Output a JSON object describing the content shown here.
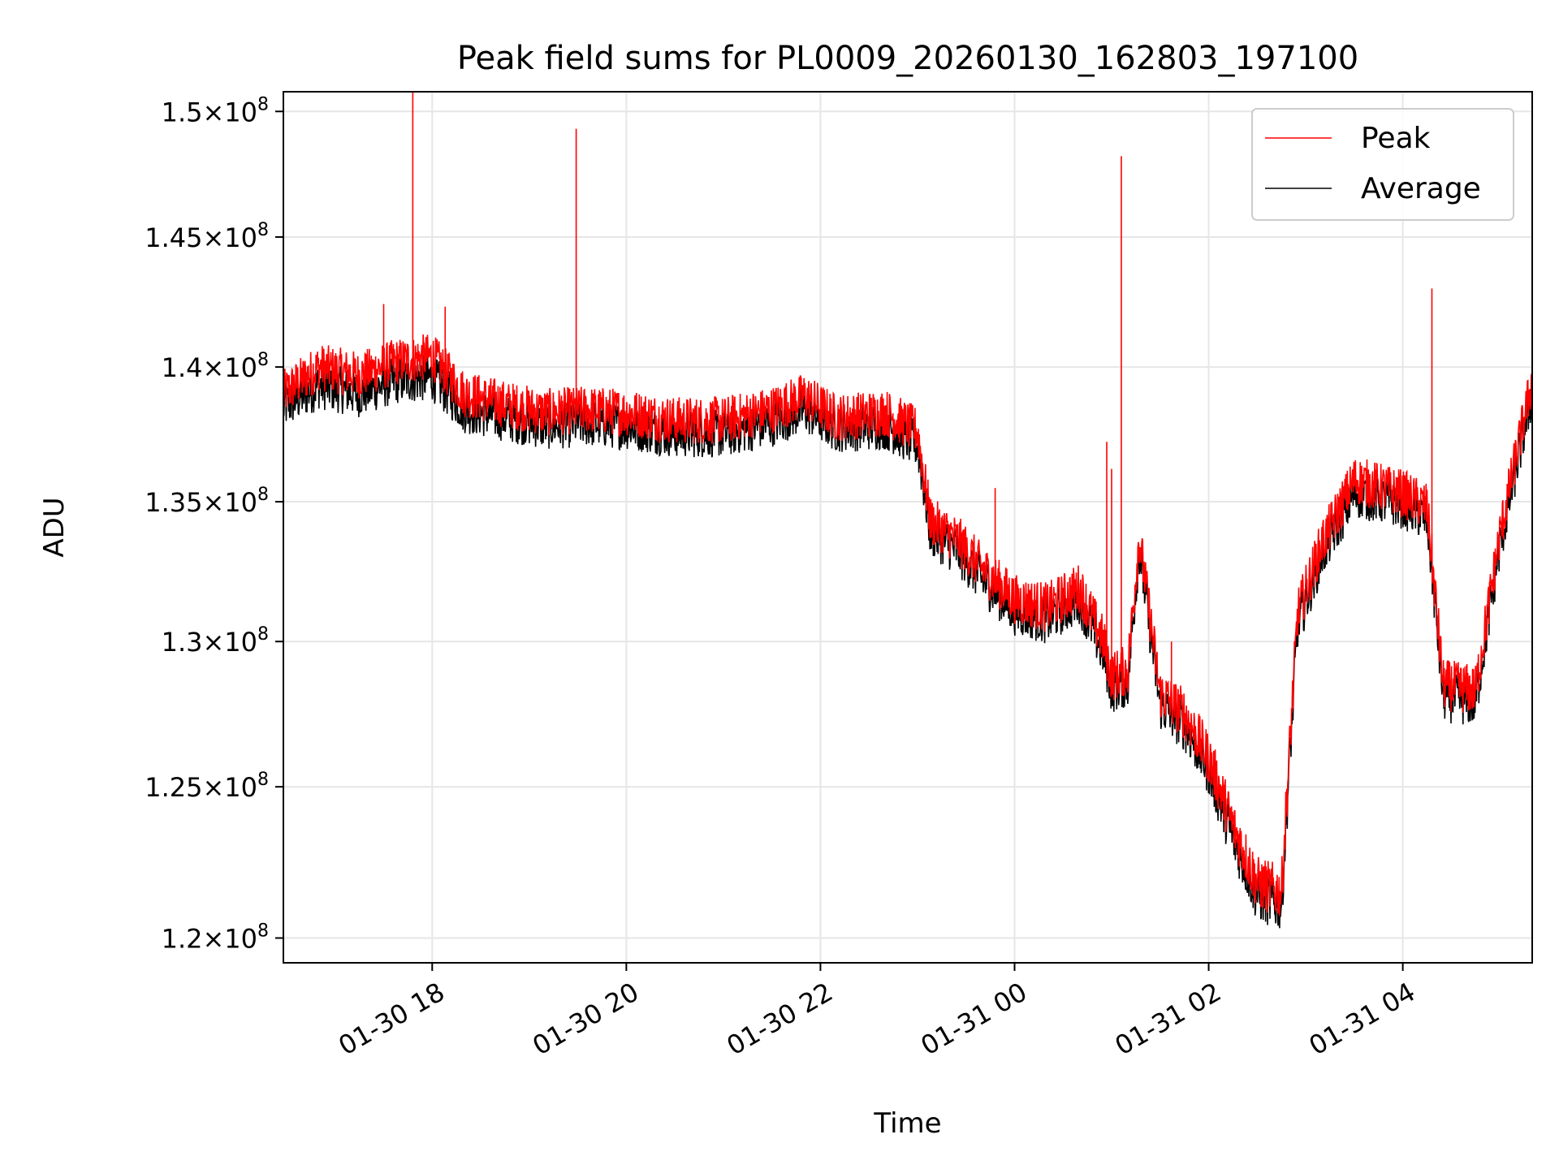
{
  "chart_data": {
    "type": "line",
    "title": "Peak field sums for PL0009_20260130_162803_197100",
    "xlabel": "Time",
    "ylabel": "ADU",
    "ylim": [
      119200000,
      150800000
    ],
    "xlim": [
      "2026-01-30T16:28",
      "2026-01-31T05:20"
    ],
    "y_scale": "log",
    "y_ticks": [
      120000000,
      125000000,
      130000000,
      135000000,
      140000000,
      145000000,
      150000000
    ],
    "y_tick_labels": [
      {
        "mant": "1.2",
        "exp": "8"
      },
      {
        "mant": "1.25",
        "exp": "8"
      },
      {
        "mant": "1.3",
        "exp": "8"
      },
      {
        "mant": "1.35",
        "exp": "8"
      },
      {
        "mant": "1.4",
        "exp": "8"
      },
      {
        "mant": "1.45",
        "exp": "8"
      },
      {
        "mant": "1.5",
        "exp": "8"
      }
    ],
    "x_ticks": [
      "2026-01-30T18:00",
      "2026-01-30T20:00",
      "2026-01-30T22:00",
      "2026-01-31T00:00",
      "2026-01-31T02:00",
      "2026-01-31T04:00"
    ],
    "x_tick_labels": [
      "01-30 18",
      "01-30 20",
      "01-30 22",
      "01-31 00",
      "01-31 02",
      "01-31 04"
    ],
    "grid": true,
    "legend": "top-right",
    "series": [
      {
        "name": "Peak",
        "color": "#ff0000",
        "points": [
          [
            "2026-01-30T16:28",
            139000000
          ],
          [
            "2026-01-30T16:50",
            140000000
          ],
          [
            "2026-01-30T17:15",
            139700000
          ],
          [
            "2026-01-30T17:38",
            140200000
          ],
          [
            "2026-01-30T18:00",
            140400000
          ],
          [
            "2026-01-30T18:20",
            139000000
          ],
          [
            "2026-01-30T18:45",
            138600000
          ],
          [
            "2026-01-30T19:10",
            138300000
          ],
          [
            "2026-01-30T19:35",
            138400000
          ],
          [
            "2026-01-30T20:00",
            138300000
          ],
          [
            "2026-01-30T20:30",
            138000000
          ],
          [
            "2026-01-30T21:00",
            138000000
          ],
          [
            "2026-01-30T21:30",
            138400000
          ],
          [
            "2026-01-30T21:50",
            138900000
          ],
          [
            "2026-01-30T22:10",
            138100000
          ],
          [
            "2026-01-30T22:40",
            138300000
          ],
          [
            "2026-01-30T23:00",
            137600000
          ],
          [
            "2026-01-30T23:08",
            134300000
          ],
          [
            "2026-01-30T23:25",
            133600000
          ],
          [
            "2026-01-30T23:40",
            132600000
          ],
          [
            "2026-01-31T00:00",
            131500000
          ],
          [
            "2026-01-31T00:20",
            131200000
          ],
          [
            "2026-01-31T00:40",
            131900000
          ],
          [
            "2026-01-31T00:55",
            130000000
          ],
          [
            "2026-01-31T01:00",
            128800000
          ],
          [
            "2026-01-31T01:10",
            129000000
          ],
          [
            "2026-01-31T01:17",
            133700000
          ],
          [
            "2026-01-31T01:30",
            128200000
          ],
          [
            "2026-01-31T01:45",
            127500000
          ],
          [
            "2026-01-31T02:00",
            126000000
          ],
          [
            "2026-01-31T02:15",
            123700000
          ],
          [
            "2026-01-31T02:30",
            121800000
          ],
          [
            "2026-01-31T02:45",
            121500000
          ],
          [
            "2026-01-31T02:55",
            131000000
          ],
          [
            "2026-01-31T03:10",
            133500000
          ],
          [
            "2026-01-31T03:30",
            135800000
          ],
          [
            "2026-01-31T04:00",
            135300000
          ],
          [
            "2026-01-31T04:15",
            134800000
          ],
          [
            "2026-01-31T04:25",
            128500000
          ],
          [
            "2026-01-31T04:45",
            128300000
          ],
          [
            "2026-01-31T05:00",
            133800000
          ],
          [
            "2026-01-31T05:20",
            139500000
          ]
        ],
        "spikes": [
          [
            "2026-01-30T17:48",
            150800000
          ],
          [
            "2026-01-30T19:29",
            149300000
          ],
          [
            "2026-01-31T00:57",
            137200000
          ],
          [
            "2026-01-31T01:00",
            136200000
          ],
          [
            "2026-01-31T01:06",
            148200000
          ],
          [
            "2026-01-31T04:18",
            143000000
          ],
          [
            "2026-01-30T17:30",
            142400000
          ],
          [
            "2026-01-30T18:08",
            142300000
          ],
          [
            "2026-01-30T23:48",
            135500000
          ],
          [
            "2026-01-31T01:37",
            130000000
          ]
        ]
      },
      {
        "name": "Average",
        "color": "#000000",
        "points": [
          [
            "2026-01-30T16:28",
            138500000
          ],
          [
            "2026-01-30T16:50",
            139300000
          ],
          [
            "2026-01-30T17:15",
            139000000
          ],
          [
            "2026-01-30T17:38",
            139500000
          ],
          [
            "2026-01-30T18:00",
            139600000
          ],
          [
            "2026-01-30T18:20",
            138400000
          ],
          [
            "2026-01-30T18:45",
            138100000
          ],
          [
            "2026-01-30T19:10",
            137800000
          ],
          [
            "2026-01-30T19:35",
            137900000
          ],
          [
            "2026-01-30T20:00",
            137800000
          ],
          [
            "2026-01-30T20:30",
            137500000
          ],
          [
            "2026-01-30T21:00",
            137500000
          ],
          [
            "2026-01-30T21:30",
            137900000
          ],
          [
            "2026-01-30T21:50",
            138400000
          ],
          [
            "2026-01-30T22:10",
            137700000
          ],
          [
            "2026-01-30T22:40",
            137800000
          ],
          [
            "2026-01-30T23:00",
            137100000
          ],
          [
            "2026-01-30T23:08",
            133900000
          ],
          [
            "2026-01-30T23:25",
            133200000
          ],
          [
            "2026-01-30T23:40",
            132200000
          ],
          [
            "2026-01-31T00:00",
            131100000
          ],
          [
            "2026-01-31T00:20",
            130800000
          ],
          [
            "2026-01-31T00:40",
            131500000
          ],
          [
            "2026-01-31T00:55",
            129600000
          ],
          [
            "2026-01-31T01:00",
            128400000
          ],
          [
            "2026-01-31T01:10",
            128600000
          ],
          [
            "2026-01-31T01:17",
            133300000
          ],
          [
            "2026-01-31T01:30",
            127800000
          ],
          [
            "2026-01-31T01:45",
            127100000
          ],
          [
            "2026-01-31T02:00",
            125600000
          ],
          [
            "2026-01-31T02:15",
            123300000
          ],
          [
            "2026-01-31T02:30",
            121400000
          ],
          [
            "2026-01-31T02:45",
            121100000
          ],
          [
            "2026-01-31T02:55",
            130600000
          ],
          [
            "2026-01-31T03:10",
            133100000
          ],
          [
            "2026-01-31T03:30",
            135300000
          ],
          [
            "2026-01-31T04:00",
            134900000
          ],
          [
            "2026-01-31T04:15",
            134400000
          ],
          [
            "2026-01-31T04:25",
            128100000
          ],
          [
            "2026-01-31T04:45",
            127900000
          ],
          [
            "2026-01-31T05:00",
            133400000
          ],
          [
            "2026-01-31T05:20",
            139000000
          ]
        ]
      }
    ]
  }
}
